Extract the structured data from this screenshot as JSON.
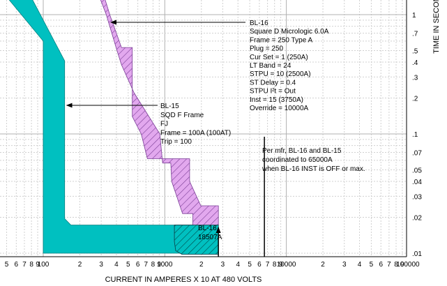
{
  "chart_data": {
    "type": "line",
    "xlabel": "CURRENT IN AMPERES X 10 AT 480 VOLTS",
    "ylabel": "TIME IN SECONDS",
    "x_scale": "log",
    "y_scale": "log",
    "xlim": [
      31,
      100000
    ],
    "ylim": [
      0.01,
      1.7
    ],
    "grid": true,
    "x_ticks": [
      "5",
      "6",
      "7",
      "8",
      "9",
      "100",
      "2",
      "3",
      "4",
      "5",
      "6",
      "7",
      "8",
      "9",
      "1000",
      "2",
      "3",
      "4",
      "5",
      "6",
      "7",
      "8",
      "9",
      "10000",
      "2",
      "3",
      "4",
      "5",
      "6",
      "7",
      "8",
      "9",
      "100000"
    ],
    "y_ticks": [
      "1",
      ".7",
      ".5",
      ".4",
      ".3",
      ".2",
      ".1",
      ".07",
      ".05",
      ".04",
      ".03",
      ".02",
      ".01"
    ],
    "series": [
      {
        "name": "BL-15",
        "fill": "#00c0c0",
        "outline": [
          [
            31,
            1.7
          ],
          [
            72,
            1.7
          ],
          [
            150,
            0.41
          ],
          [
            150,
            0.0195
          ],
          [
            169,
            0.0172
          ],
          [
            1700,
            0.0172
          ],
          [
            1700,
            0.01
          ],
          [
            100,
            0.01
          ],
          [
            100,
            0.6
          ],
          [
            43,
            1.7
          ]
        ]
      },
      {
        "name": "BL-16",
        "fill": "#e2a8ee",
        "hatch": "#7a3d96",
        "outline": [
          [
            300,
            1.7
          ],
          [
            355,
            0.98
          ],
          [
            440,
            0.53
          ],
          [
            540,
            0.53
          ],
          [
            540,
            0.14
          ],
          [
            640,
            0.1
          ],
          [
            720,
            0.062
          ],
          [
            1600,
            0.062
          ],
          [
            1600,
            0.04
          ],
          [
            1980,
            0.025
          ],
          [
            2760,
            0.025
          ],
          [
            2760,
            0.0098
          ],
          [
            1380,
            0.0098
          ],
          [
            1230,
            0.0105
          ],
          [
            1200,
            0.0125
          ],
          [
            1200,
            0.0172
          ],
          [
            1700,
            0.0172
          ],
          [
            1700,
            0.0215
          ],
          [
            1400,
            0.0215
          ],
          [
            1140,
            0.04
          ],
          [
            1120,
            0.057
          ],
          [
            960,
            0.057
          ],
          [
            910,
            0.1
          ],
          [
            560,
            0.22
          ],
          [
            440,
            0.38
          ],
          [
            400,
            0.52
          ],
          [
            330,
            1.0
          ],
          [
            270,
            1.7
          ]
        ]
      }
    ],
    "annotations": [
      {
        "lines": [
          "BL-16",
          "Square D Micrologic 6.0A",
          "Frame = 250 Type A",
          "Plug = 250",
          "Cur Set = 1 (250A)",
          "LT Band = 24",
          "STPU = 10 (2500A)",
          "ST Delay = 0.4",
          "STPU I²t = Out",
          "Inst = 15 (3750A)",
          "Override = 10000A"
        ],
        "arrow_to": [
          342,
          0.88
        ]
      },
      {
        "lines": [
          "BL-15",
          "SQD F Frame",
          "FJ",
          "Frame = 100A (100AT)",
          "Trip = 100"
        ],
        "arrow_to": [
          150,
          0.2
        ]
      },
      {
        "lines": [
          "Per mfr, BL-16 and BL-15",
          "coordinated to 65000A",
          "when BL-16 INST is OFF or max."
        ],
        "marker_x": 6600
      },
      {
        "lines": [
          "BL-16",
          "18507A"
        ],
        "marker_x": 2760
      }
    ]
  }
}
